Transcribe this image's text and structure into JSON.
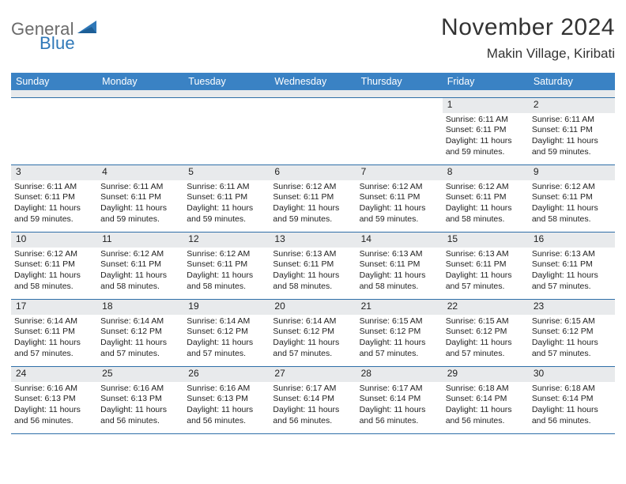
{
  "logo": {
    "general": "General",
    "blue": "Blue"
  },
  "header": {
    "month_title": "November 2024",
    "location": "Makin Village, Kiribati"
  },
  "colors": {
    "header_bar": "#3a82c4",
    "date_strip": "#e8eaec",
    "rule": "#2f6fa8",
    "logo_gray": "#6b6b6b",
    "logo_blue": "#2f78b8",
    "text": "#222222",
    "background": "#ffffff"
  },
  "day_names": [
    "Sunday",
    "Monday",
    "Tuesday",
    "Wednesday",
    "Thursday",
    "Friday",
    "Saturday"
  ],
  "weeks": [
    [
      {
        "empty": true
      },
      {
        "empty": true
      },
      {
        "empty": true
      },
      {
        "empty": true
      },
      {
        "empty": true
      },
      {
        "date": "1",
        "sunrise": "Sunrise: 6:11 AM",
        "sunset": "Sunset: 6:11 PM",
        "daylight": "Daylight: 11 hours and 59 minutes."
      },
      {
        "date": "2",
        "sunrise": "Sunrise: 6:11 AM",
        "sunset": "Sunset: 6:11 PM",
        "daylight": "Daylight: 11 hours and 59 minutes."
      }
    ],
    [
      {
        "date": "3",
        "sunrise": "Sunrise: 6:11 AM",
        "sunset": "Sunset: 6:11 PM",
        "daylight": "Daylight: 11 hours and 59 minutes."
      },
      {
        "date": "4",
        "sunrise": "Sunrise: 6:11 AM",
        "sunset": "Sunset: 6:11 PM",
        "daylight": "Daylight: 11 hours and 59 minutes."
      },
      {
        "date": "5",
        "sunrise": "Sunrise: 6:11 AM",
        "sunset": "Sunset: 6:11 PM",
        "daylight": "Daylight: 11 hours and 59 minutes."
      },
      {
        "date": "6",
        "sunrise": "Sunrise: 6:12 AM",
        "sunset": "Sunset: 6:11 PM",
        "daylight": "Daylight: 11 hours and 59 minutes."
      },
      {
        "date": "7",
        "sunrise": "Sunrise: 6:12 AM",
        "sunset": "Sunset: 6:11 PM",
        "daylight": "Daylight: 11 hours and 59 minutes."
      },
      {
        "date": "8",
        "sunrise": "Sunrise: 6:12 AM",
        "sunset": "Sunset: 6:11 PM",
        "daylight": "Daylight: 11 hours and 58 minutes."
      },
      {
        "date": "9",
        "sunrise": "Sunrise: 6:12 AM",
        "sunset": "Sunset: 6:11 PM",
        "daylight": "Daylight: 11 hours and 58 minutes."
      }
    ],
    [
      {
        "date": "10",
        "sunrise": "Sunrise: 6:12 AM",
        "sunset": "Sunset: 6:11 PM",
        "daylight": "Daylight: 11 hours and 58 minutes."
      },
      {
        "date": "11",
        "sunrise": "Sunrise: 6:12 AM",
        "sunset": "Sunset: 6:11 PM",
        "daylight": "Daylight: 11 hours and 58 minutes."
      },
      {
        "date": "12",
        "sunrise": "Sunrise: 6:12 AM",
        "sunset": "Sunset: 6:11 PM",
        "daylight": "Daylight: 11 hours and 58 minutes."
      },
      {
        "date": "13",
        "sunrise": "Sunrise: 6:13 AM",
        "sunset": "Sunset: 6:11 PM",
        "daylight": "Daylight: 11 hours and 58 minutes."
      },
      {
        "date": "14",
        "sunrise": "Sunrise: 6:13 AM",
        "sunset": "Sunset: 6:11 PM",
        "daylight": "Daylight: 11 hours and 58 minutes."
      },
      {
        "date": "15",
        "sunrise": "Sunrise: 6:13 AM",
        "sunset": "Sunset: 6:11 PM",
        "daylight": "Daylight: 11 hours and 57 minutes."
      },
      {
        "date": "16",
        "sunrise": "Sunrise: 6:13 AM",
        "sunset": "Sunset: 6:11 PM",
        "daylight": "Daylight: 11 hours and 57 minutes."
      }
    ],
    [
      {
        "date": "17",
        "sunrise": "Sunrise: 6:14 AM",
        "sunset": "Sunset: 6:11 PM",
        "daylight": "Daylight: 11 hours and 57 minutes."
      },
      {
        "date": "18",
        "sunrise": "Sunrise: 6:14 AM",
        "sunset": "Sunset: 6:12 PM",
        "daylight": "Daylight: 11 hours and 57 minutes."
      },
      {
        "date": "19",
        "sunrise": "Sunrise: 6:14 AM",
        "sunset": "Sunset: 6:12 PM",
        "daylight": "Daylight: 11 hours and 57 minutes."
      },
      {
        "date": "20",
        "sunrise": "Sunrise: 6:14 AM",
        "sunset": "Sunset: 6:12 PM",
        "daylight": "Daylight: 11 hours and 57 minutes."
      },
      {
        "date": "21",
        "sunrise": "Sunrise: 6:15 AM",
        "sunset": "Sunset: 6:12 PM",
        "daylight": "Daylight: 11 hours and 57 minutes."
      },
      {
        "date": "22",
        "sunrise": "Sunrise: 6:15 AM",
        "sunset": "Sunset: 6:12 PM",
        "daylight": "Daylight: 11 hours and 57 minutes."
      },
      {
        "date": "23",
        "sunrise": "Sunrise: 6:15 AM",
        "sunset": "Sunset: 6:12 PM",
        "daylight": "Daylight: 11 hours and 57 minutes."
      }
    ],
    [
      {
        "date": "24",
        "sunrise": "Sunrise: 6:16 AM",
        "sunset": "Sunset: 6:13 PM",
        "daylight": "Daylight: 11 hours and 56 minutes."
      },
      {
        "date": "25",
        "sunrise": "Sunrise: 6:16 AM",
        "sunset": "Sunset: 6:13 PM",
        "daylight": "Daylight: 11 hours and 56 minutes."
      },
      {
        "date": "26",
        "sunrise": "Sunrise: 6:16 AM",
        "sunset": "Sunset: 6:13 PM",
        "daylight": "Daylight: 11 hours and 56 minutes."
      },
      {
        "date": "27",
        "sunrise": "Sunrise: 6:17 AM",
        "sunset": "Sunset: 6:14 PM",
        "daylight": "Daylight: 11 hours and 56 minutes."
      },
      {
        "date": "28",
        "sunrise": "Sunrise: 6:17 AM",
        "sunset": "Sunset: 6:14 PM",
        "daylight": "Daylight: 11 hours and 56 minutes."
      },
      {
        "date": "29",
        "sunrise": "Sunrise: 6:18 AM",
        "sunset": "Sunset: 6:14 PM",
        "daylight": "Daylight: 11 hours and 56 minutes."
      },
      {
        "date": "30",
        "sunrise": "Sunrise: 6:18 AM",
        "sunset": "Sunset: 6:14 PM",
        "daylight": "Daylight: 11 hours and 56 minutes."
      }
    ]
  ]
}
